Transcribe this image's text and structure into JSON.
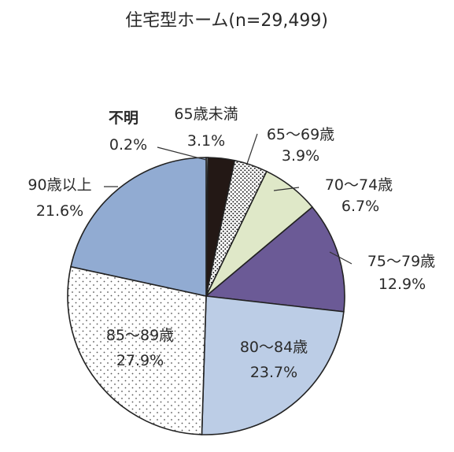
{
  "chart_data": {
    "type": "pie",
    "title": "住宅型ホーム(n=29,499)",
    "slices": [
      {
        "category": "不明",
        "value": 0.2,
        "label": "0.2%",
        "color": "#ffffff",
        "pattern": "none"
      },
      {
        "category": "65歳未満",
        "value": 3.1,
        "label": "3.1%",
        "color": "#231815",
        "pattern": "none"
      },
      {
        "category": "65～69歳",
        "value": 3.9,
        "label": "3.9%",
        "color": "#ffffff",
        "pattern": "dense-dots"
      },
      {
        "category": "70～74歳",
        "value": 6.7,
        "label": "6.7%",
        "color": "#dfe8c8",
        "pattern": "none"
      },
      {
        "category": "75～79歳",
        "value": 12.9,
        "label": "12.9%",
        "color": "#6b5a96",
        "pattern": "none"
      },
      {
        "category": "80～84歳",
        "value": 23.7,
        "label": "23.7%",
        "color": "#bccde6",
        "pattern": "none"
      },
      {
        "category": "85～89歳",
        "value": 27.9,
        "label": "27.9%",
        "color": "#ffffff",
        "pattern": "sparse-dots"
      },
      {
        "category": "90歳以上",
        "value": 21.6,
        "label": "21.6%",
        "color": "#91abd2",
        "pattern": "none"
      }
    ],
    "start_angle": "12 o'clock",
    "direction": "clockwise",
    "legend": "none"
  }
}
